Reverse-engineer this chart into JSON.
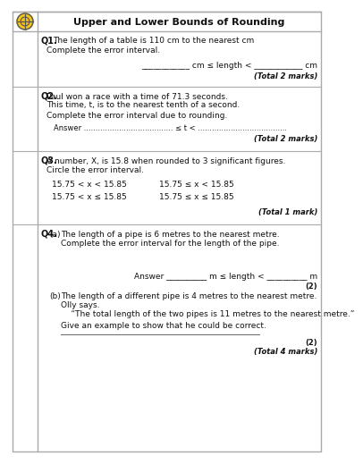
{
  "title": "Upper and Lower Bounds of Rounding",
  "bg_color": "#ffffff",
  "q1": {
    "label": "Q1.",
    "text1": "The length of a table is 110 cm to the nearest cm",
    "text2": "Complete the error interval.",
    "answer_line": "____________ cm ≤ length < ____________ cm",
    "total": "(Total 2 marks)"
  },
  "q2": {
    "label": "Q2.",
    "text1": "Paul won a race with a time of 71.3 seconds.",
    "text2": "This time, t, is to the nearest tenth of a second.",
    "text3": "Complete the error interval due to rounding.",
    "answer_line": "Answer ...................................... ≤ t < ......................................",
    "total": "(Total 2 marks)"
  },
  "q3": {
    "label": "Q3.",
    "text1": "A number, X, is 15.8 when rounded to 3 significant figures.",
    "text2": "Circle the error interval.",
    "opt1": "15.75 < x < 15.85",
    "opt2": "15.75 ≤ x < 15.85",
    "opt3": "15.75 < x ≤ 15.85",
    "opt4": "15.75 ≤ x ≤ 15.85",
    "total": "(Total 1 mark)"
  },
  "q4": {
    "label": "Q4.",
    "a_label": "(a)",
    "a_text1": "The length of a pipe is 6 metres to the nearest metre.",
    "a_text2": "Complete the error interval for the length of the pipe.",
    "a_answer": "Answer __________ m ≤ length < __________ m",
    "a_marks": "(2)",
    "b_label": "(b)",
    "b_text1": "The length of a different pipe is 4 metres to the nearest metre.",
    "b_text2": "Olly says.",
    "b_quote": "    “The total length of the two pipes is 11 metres to the nearest metre.”",
    "b_text3": "Give an example to show that he could be correct.",
    "b_marks": "(2)",
    "total": "(Total 4 marks)"
  }
}
